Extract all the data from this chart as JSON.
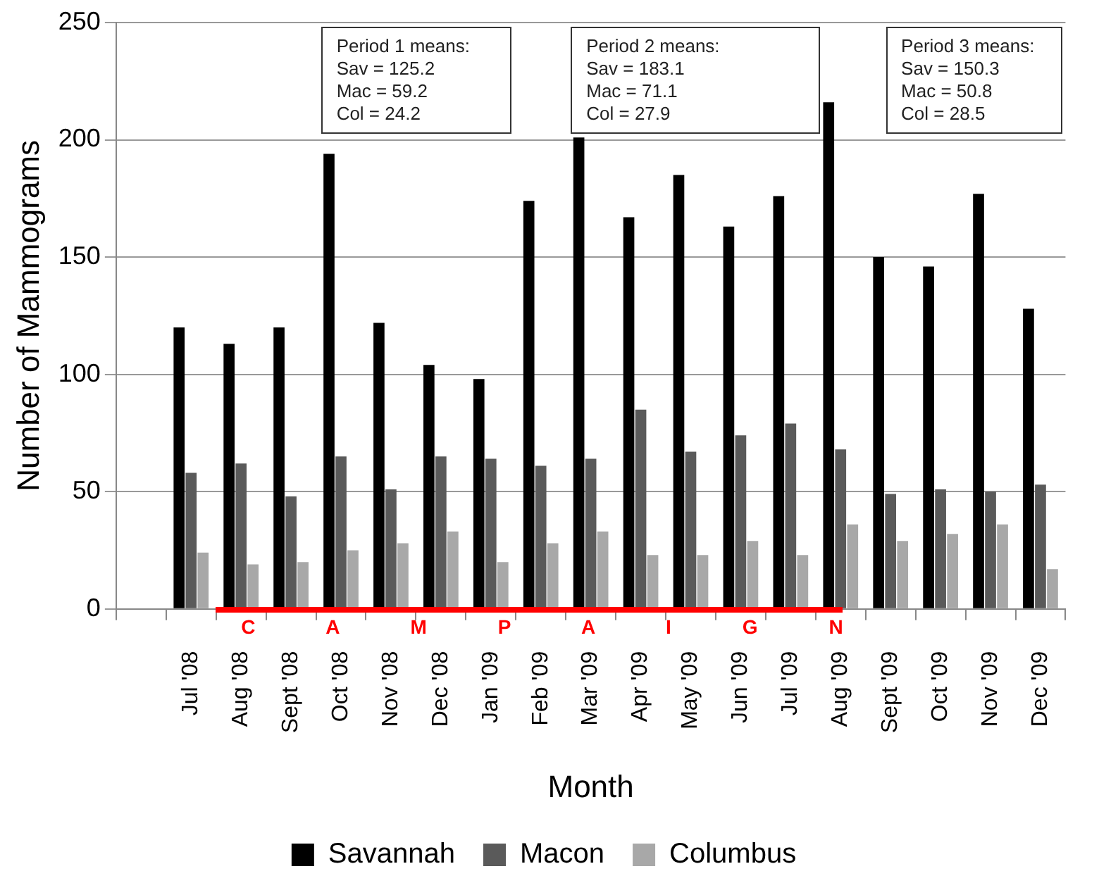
{
  "chart_data": {
    "type": "bar",
    "xlabel": "Month",
    "ylabel": "Number of Mammograms",
    "categories": [
      null,
      "Jul '08",
      "Aug '08",
      "Sept '08",
      "Oct '08",
      "Nov '08",
      "Dec '08",
      "Jan '09",
      "Feb '09",
      "Mar '09",
      "Apr '09",
      "May '09",
      "Jun '09",
      "Jul '09",
      "Aug '09",
      "Sept '09",
      "Oct '09",
      "Nov '09",
      "Dec '09"
    ],
    "series": [
      {
        "name": "Savannah",
        "color": "#000000",
        "values": [
          null,
          120,
          113,
          120,
          194,
          122,
          104,
          98,
          174,
          201,
          167,
          185,
          163,
          176,
          216,
          150,
          146,
          177,
          128
        ]
      },
      {
        "name": "Macon",
        "color": "#5a5a5a",
        "values": [
          null,
          58,
          62,
          48,
          65,
          51,
          65,
          64,
          61,
          64,
          85,
          67,
          74,
          79,
          68,
          49,
          51,
          50,
          53
        ]
      },
      {
        "name": "Columbus",
        "color": "#a8a8a8",
        "values": [
          null,
          24,
          19,
          20,
          25,
          28,
          33,
          20,
          28,
          33,
          23,
          23,
          29,
          23,
          36,
          29,
          32,
          36,
          17
        ]
      }
    ],
    "ylim": [
      0,
      250
    ],
    "yticks": [
      0,
      50,
      100,
      150,
      200,
      250
    ],
    "grid": "y",
    "legend": "bottom",
    "annotations": [
      "Period 1 means:\nSav = 125.2\nMac = 59.2\nCol = 24.2",
      "Period 2 means:\nSav = 183.1\nMac = 71.1\nCol = 27.9",
      "Period 3 means:\nSav = 150.3\nMac = 50.8\nCol = 28.5",
      "C A M P A I G N"
    ]
  }
}
